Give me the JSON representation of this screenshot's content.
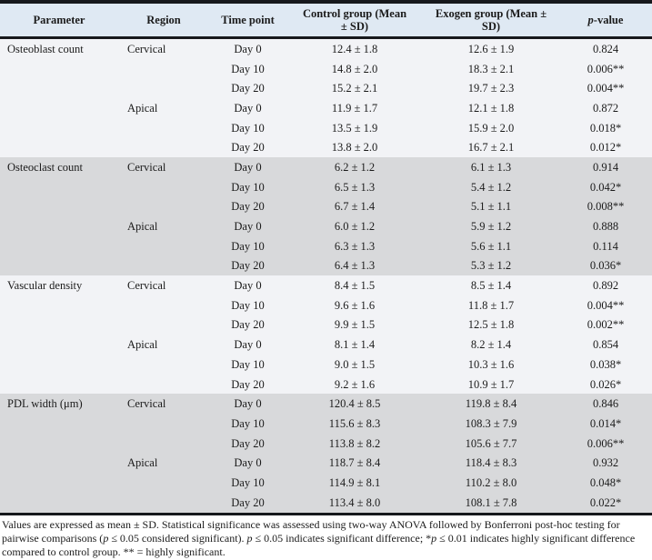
{
  "colors": {
    "header_bg": "#dfe9f3",
    "band_light": "#f2f3f6",
    "band_gray": "#d8d9db",
    "rule": "#16181c",
    "text": "#1b1b1b"
  },
  "table": {
    "headers": {
      "parameter": "Parameter",
      "region": "Region",
      "time_point": "Time point",
      "control": "Control group (Mean ± SD)",
      "exogen": "Exogen group (Mean ± SD)",
      "p_italic": "p",
      "p_rest": "-value"
    },
    "groups": [
      {
        "shade": "light",
        "rows": [
          {
            "parameter": "Osteoblast count",
            "region": "Cervical",
            "time": "Day 0",
            "control": "12.4 ± 1.8",
            "exogen": "12.6 ± 1.9",
            "p": "0.824"
          },
          {
            "parameter": "",
            "region": "",
            "time": "Day 10",
            "control": "14.8 ± 2.0",
            "exogen": "18.3 ± 2.1",
            "p": "0.006**"
          },
          {
            "parameter": "",
            "region": "",
            "time": "Day 20",
            "control": "15.2 ± 2.1",
            "exogen": "19.7 ± 2.3",
            "p": "0.004**"
          },
          {
            "parameter": "",
            "region": "Apical",
            "time": "Day 0",
            "control": "11.9 ± 1.7",
            "exogen": "12.1 ± 1.8",
            "p": "0.872"
          },
          {
            "parameter": "",
            "region": "",
            "time": "Day 10",
            "control": "13.5 ± 1.9",
            "exogen": "15.9 ± 2.0",
            "p": "0.018*"
          },
          {
            "parameter": "",
            "region": "",
            "time": "Day 20",
            "control": "13.8 ± 2.0",
            "exogen": "16.7 ± 2.1",
            "p": "0.012*"
          }
        ]
      },
      {
        "shade": "gray",
        "rows": [
          {
            "parameter": "Osteoclast count",
            "region": "Cervical",
            "time": "Day 0",
            "control": "6.2 ± 1.2",
            "exogen": "6.1 ± 1.3",
            "p": "0.914"
          },
          {
            "parameter": "",
            "region": "",
            "time": "Day 10",
            "control": "6.5 ± 1.3",
            "exogen": "5.4 ± 1.2",
            "p": "0.042*"
          },
          {
            "parameter": "",
            "region": "",
            "time": "Day 20",
            "control": "6.7 ± 1.4",
            "exogen": "5.1 ± 1.1",
            "p": "0.008**"
          },
          {
            "parameter": "",
            "region": "Apical",
            "time": "Day 0",
            "control": "6.0 ± 1.2",
            "exogen": "5.9 ± 1.2",
            "p": "0.888"
          },
          {
            "parameter": "",
            "region": "",
            "time": "Day 10",
            "control": "6.3 ± 1.3",
            "exogen": "5.6 ± 1.1",
            "p": "0.114"
          },
          {
            "parameter": "",
            "region": "",
            "time": "Day 20",
            "control": "6.4 ± 1.3",
            "exogen": "5.3 ± 1.2",
            "p": "0.036*"
          }
        ]
      },
      {
        "shade": "light",
        "rows": [
          {
            "parameter": "Vascular density",
            "region": "Cervical",
            "time": "Day 0",
            "control": "8.4 ± 1.5",
            "exogen": "8.5 ± 1.4",
            "p": "0.892"
          },
          {
            "parameter": "",
            "region": "",
            "time": "Day 10",
            "control": "9.6 ± 1.6",
            "exogen": "11.8 ± 1.7",
            "p": "0.004**"
          },
          {
            "parameter": "",
            "region": "",
            "time": "Day 20",
            "control": "9.9 ± 1.5",
            "exogen": "12.5 ± 1.8",
            "p": "0.002**"
          },
          {
            "parameter": "",
            "region": "Apical",
            "time": "Day 0",
            "control": "8.1 ± 1.4",
            "exogen": "8.2 ± 1.4",
            "p": "0.854"
          },
          {
            "parameter": "",
            "region": "",
            "time": "Day 10",
            "control": "9.0 ± 1.5",
            "exogen": "10.3 ± 1.6",
            "p": "0.038*"
          },
          {
            "parameter": "",
            "region": "",
            "time": "Day 20",
            "control": "9.2 ± 1.6",
            "exogen": "10.9 ± 1.7",
            "p": "0.026*"
          }
        ]
      },
      {
        "shade": "gray",
        "rows": [
          {
            "parameter": "PDL width (μm)",
            "region": "Cervical",
            "time": "Day 0",
            "control": "120.4 ± 8.5",
            "exogen": "119.8 ± 8.4",
            "p": "0.846"
          },
          {
            "parameter": "",
            "region": "",
            "time": "Day 10",
            "control": "115.6 ± 8.3",
            "exogen": "108.3 ± 7.9",
            "p": "0.014*"
          },
          {
            "parameter": "",
            "region": "",
            "time": "Day 20",
            "control": "113.8 ± 8.2",
            "exogen": "105.6 ± 7.7",
            "p": "0.006**"
          },
          {
            "parameter": "",
            "region": "Apical",
            "time": "Day 0",
            "control": "118.7 ± 8.4",
            "exogen": "118.4 ± 8.3",
            "p": "0.932"
          },
          {
            "parameter": "",
            "region": "",
            "time": "Day 10",
            "control": "114.9 ± 8.1",
            "exogen": "110.2 ± 8.0",
            "p": "0.048*"
          },
          {
            "parameter": "",
            "region": "",
            "time": "Day 20",
            "control": "113.4 ± 8.0",
            "exogen": "108.1 ± 7.8",
            "p": "0.022*"
          }
        ]
      }
    ]
  },
  "footnote": {
    "segments": [
      {
        "text": "Values are expressed as mean ± SD. Statistical significance was assessed using two-way ANOVA followed by Bonferroni post-hoc testing for pairwise comparisons (",
        "italic": false
      },
      {
        "text": "p",
        "italic": true
      },
      {
        "text": " ≤ 0.05 considered significant). ",
        "italic": false
      },
      {
        "text": "p",
        "italic": true
      },
      {
        "text": " ≤ 0.05 indicates significant difference; *",
        "italic": false
      },
      {
        "text": "p",
        "italic": true
      },
      {
        "text": " ≤ 0.01 indicates highly significant difference compared to control group. ** = highly significant.",
        "italic": false
      }
    ]
  }
}
